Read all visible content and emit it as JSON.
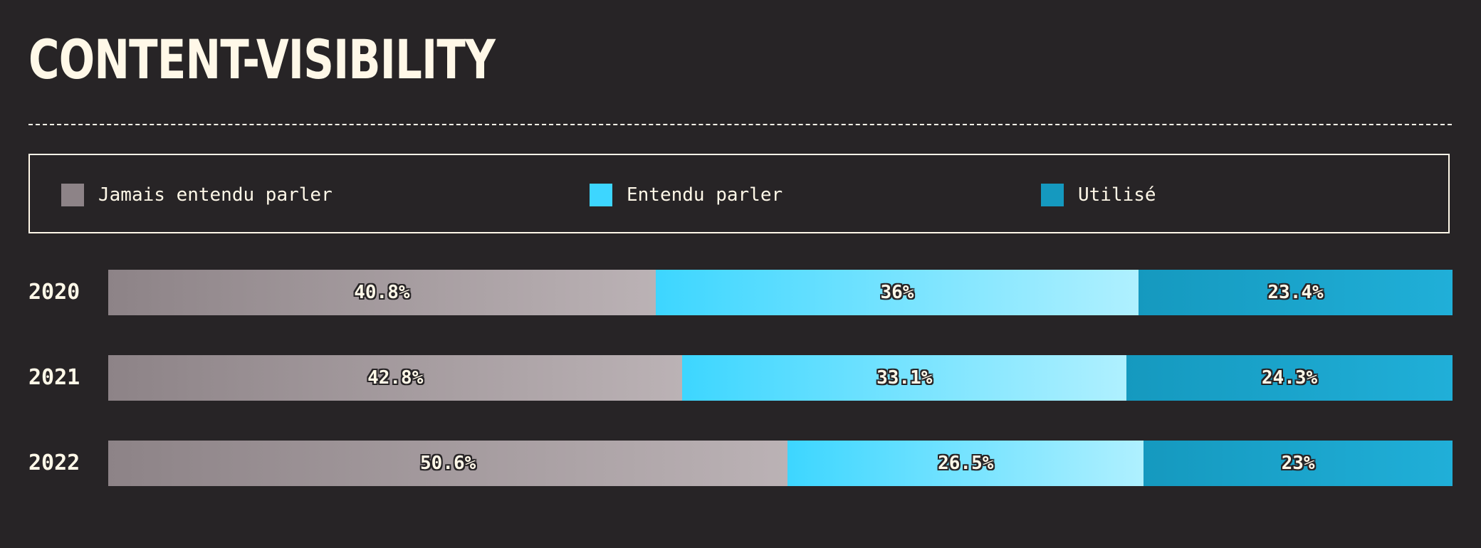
{
  "title": "CONTENT-VISIBILITY",
  "colors": {
    "background": "#272426",
    "text": "#fff8e8",
    "never_heard": [
      "#8d8387",
      "#bbb2b5"
    ],
    "heard": [
      "#3dd6ff",
      "#aff0ff"
    ],
    "used": [
      "#1599bf",
      "#20afd8"
    ]
  },
  "legend": [
    {
      "label": "Jamais entendu parler",
      "color": "#8d8387"
    },
    {
      "label": "Entendu parler",
      "color": "#3dd6ff"
    },
    {
      "label": "Utilisé",
      "color": "#1599bf"
    }
  ],
  "chart_data": {
    "type": "bar",
    "orientation": "horizontal",
    "stacked": true,
    "normalized": true,
    "title": "CONTENT-VISIBILITY",
    "categories": [
      "2020",
      "2021",
      "2022"
    ],
    "series": [
      {
        "name": "Jamais entendu parler",
        "values": [
          40.8,
          42.8,
          50.6
        ],
        "labels": [
          "40.8%",
          "42.8%",
          "50.6%"
        ]
      },
      {
        "name": "Entendu parler",
        "values": [
          36,
          33.1,
          26.5
        ],
        "labels": [
          "36%",
          "33.1%",
          "26.5%"
        ]
      },
      {
        "name": "Utilisé",
        "values": [
          23.4,
          24.3,
          23
        ],
        "labels": [
          "23.4%",
          "24.3%",
          "23%"
        ]
      }
    ],
    "xlim": [
      0,
      100
    ],
    "grid": false,
    "legend_position": "top"
  }
}
